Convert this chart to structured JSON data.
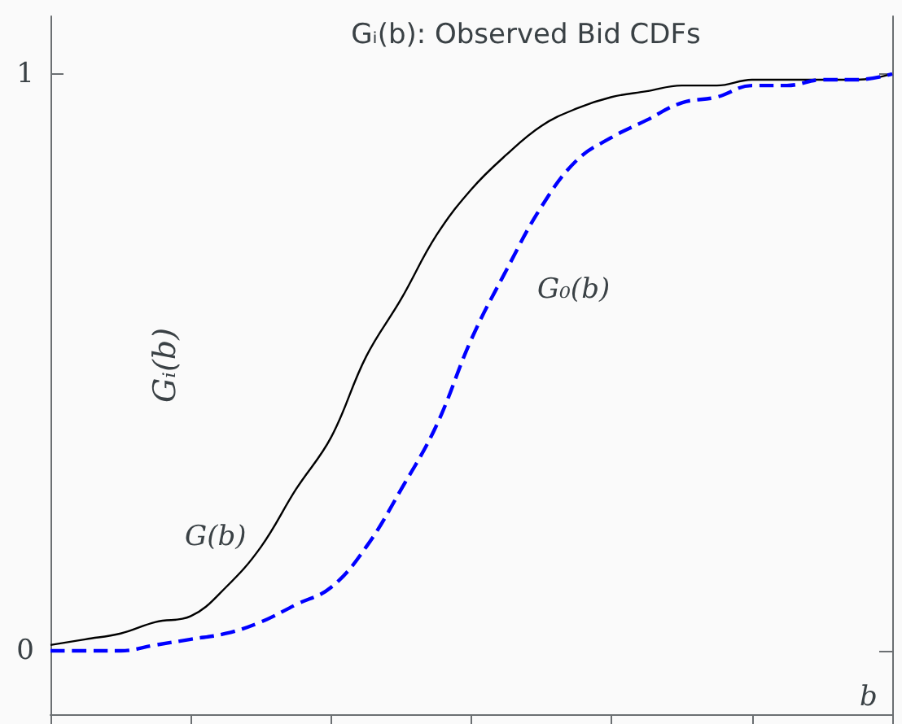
{
  "chart_data": {
    "type": "line",
    "title": "Gᵢ(b): Observed Bid CDFs",
    "xlabel": "b",
    "ylabel": "Gᵢ(b)",
    "categories": [
      null,
      null,
      null,
      null,
      null,
      null,
      null,
      null,
      null,
      null,
      null,
      null,
      null,
      null,
      null,
      null,
      null,
      null,
      null,
      null,
      null,
      null,
      null,
      null,
      null
    ],
    "series": [
      {
        "name": "G(b)",
        "color": "#000000",
        "line_style": "solid",
        "values": [
          0.01,
          0.02,
          0.03,
          0.05,
          0.06,
          0.11,
          0.18,
          0.28,
          0.37,
          0.51,
          0.61,
          0.72,
          0.8,
          0.86,
          0.91,
          0.94,
          0.96,
          0.97,
          0.98,
          0.98,
          0.99,
          0.99,
          0.99,
          0.99,
          1
        ]
      },
      {
        "name": "G₀(b)",
        "color": "#0000ff",
        "line_style": "dashed",
        "values": [
          0,
          0,
          0,
          0.01,
          0.02,
          0.03,
          0.05,
          0.08,
          0.11,
          0.18,
          0.28,
          0.39,
          0.54,
          0.66,
          0.77,
          0.85,
          0.89,
          0.92,
          0.95,
          0.96,
          0.98,
          0.98,
          0.99,
          0.99,
          1
        ]
      }
    ],
    "ylim": [
      -0.11,
      1.1
    ],
    "yticks": [
      0,
      1
    ],
    "tick_labels": "y",
    "grid": false,
    "legend": false,
    "marker": "none"
  }
}
